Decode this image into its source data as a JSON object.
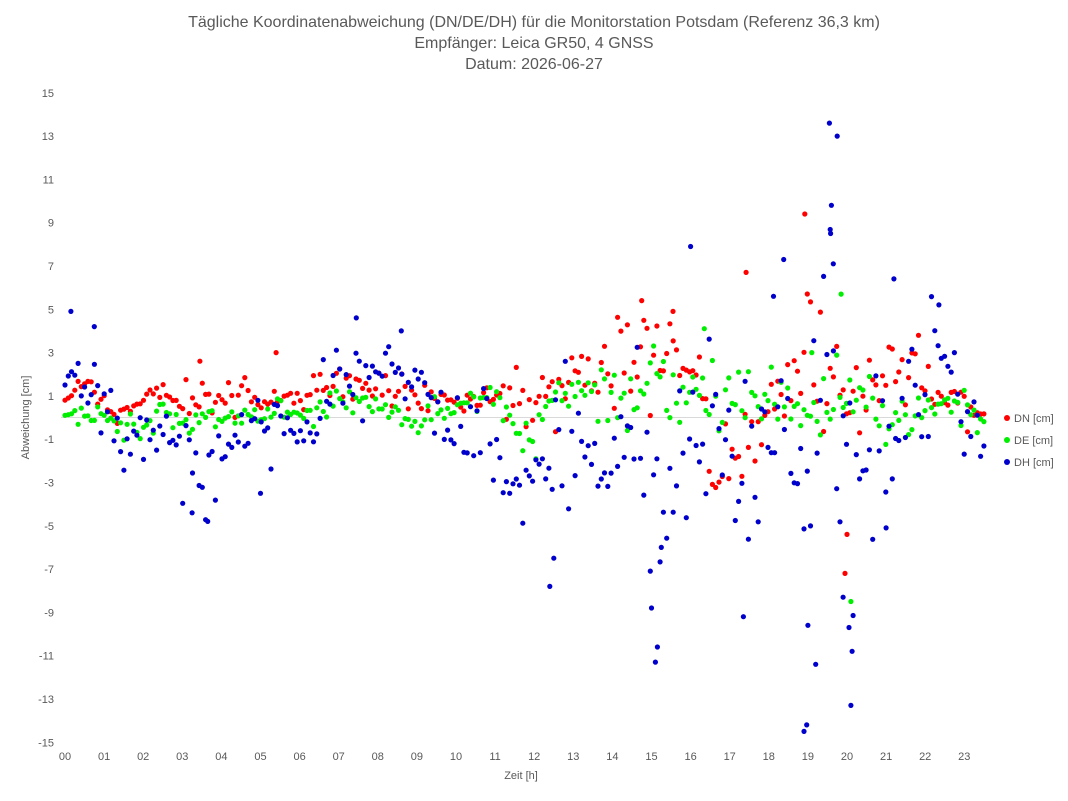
{
  "chart_data": {
    "type": "scatter",
    "title": "Tägliche Koordinatenabweichung (DN/DE/DH) für die Monitorstation Potsdam (Referenz 36,3 km)",
    "subtitle_1": "Empfänger: Leica GR50, 4 GNSS",
    "subtitle_2": "Datum: 2026-06-27",
    "xlabel": "Zeit [h]",
    "ylabel": "Abweichung [cm]",
    "xlim": [
      0,
      23.5
    ],
    "ylim": [
      -15.5,
      15.5
    ],
    "grid": false,
    "zero_line": true,
    "legend_position": "right",
    "x_ticks": [
      "00",
      "01",
      "02",
      "03",
      "04",
      "05",
      "06",
      "07",
      "08",
      "09",
      "10",
      "11",
      "12",
      "13",
      "14",
      "15",
      "16",
      "17",
      "18",
      "19",
      "20",
      "21",
      "22",
      "23"
    ],
    "y_ticks": [
      "15",
      "13",
      "11",
      "9",
      "7",
      "5",
      "3",
      "1",
      "-1",
      "-3",
      "-5",
      "-7",
      "-9",
      "-11",
      "-13",
      "-15"
    ],
    "series": [
      {
        "name": "DN [cm]",
        "color": "#ff0000",
        "anchors": [
          [
            0,
            0.8
          ],
          [
            0.5,
            1.6
          ],
          [
            1,
            0.6
          ],
          [
            1.5,
            0.2
          ],
          [
            2,
            1.0
          ],
          [
            2.5,
            1.2
          ],
          [
            3,
            0.5
          ],
          [
            3.5,
            1.0
          ],
          [
            4,
            0.9
          ],
          [
            4.5,
            1.3
          ],
          [
            5,
            0.7
          ],
          [
            5.5,
            1.1
          ],
          [
            6,
            0.8
          ],
          [
            6.5,
            1.6
          ],
          [
            7,
            1.8
          ],
          [
            7.5,
            1.4
          ],
          [
            8,
            1.3
          ],
          [
            8.5,
            1.3
          ],
          [
            9,
            1.2
          ],
          [
            9.5,
            1.0
          ],
          [
            10,
            0.6
          ],
          [
            10.5,
            0.6
          ],
          [
            11,
            1.1
          ],
          [
            11.5,
            0.9
          ],
          [
            12,
            0.4
          ],
          [
            12.5,
            1.3
          ],
          [
            13,
            1.7
          ],
          [
            13.5,
            1.5
          ],
          [
            14,
            2.0
          ],
          [
            14.5,
            2.8
          ],
          [
            15,
            3.0
          ],
          [
            15.5,
            2.6
          ],
          [
            16,
            1.2
          ],
          [
            16.5,
            -1.2
          ],
          [
            17,
            -2.5
          ],
          [
            17.5,
            -1.0
          ],
          [
            18,
            0.6
          ],
          [
            18.5,
            1.6
          ],
          [
            19,
            2.1
          ],
          [
            19.5,
            1.6
          ],
          [
            20,
            1.4
          ],
          [
            20.5,
            1.3
          ],
          [
            21,
            2.4
          ],
          [
            21.5,
            2.0
          ],
          [
            22,
            2.1
          ],
          [
            22.5,
            1.3
          ],
          [
            23,
            0.6
          ],
          [
            23.4,
            0.5
          ]
        ],
        "spread": [
          0,
          0.25,
          0.4,
          0.4,
          0.35,
          0.45,
          0.4,
          0.45,
          0.4,
          0.4,
          0.4,
          0.45,
          0.4,
          0.5,
          0.5,
          0.5,
          0.5,
          0.5,
          0.5,
          0.45,
          0.4,
          0.4,
          0.45,
          0.6,
          0.7,
          0.7,
          0.8,
          0.9,
          1.0,
          1.2,
          1.3,
          1.3,
          1.4,
          1.3,
          1.3,
          1.4,
          1.2,
          1.2,
          1.5,
          1.6,
          1.5,
          1.2,
          1.0,
          0.9,
          0.9,
          0.7,
          0.6,
          0.5
        ]
      },
      {
        "name": "DE [cm]",
        "color": "#00ee00",
        "anchors": [
          [
            0,
            0.1
          ],
          [
            0.5,
            0.2
          ],
          [
            1,
            0.0
          ],
          [
            1.5,
            -0.4
          ],
          [
            2,
            -0.5
          ],
          [
            2.5,
            0.3
          ],
          [
            3,
            -0.3
          ],
          [
            3.5,
            0.2
          ],
          [
            4,
            0.1
          ],
          [
            4.5,
            -0.1
          ],
          [
            5,
            -0.1
          ],
          [
            5.5,
            0.4
          ],
          [
            6,
            0.0
          ],
          [
            6.5,
            0.3
          ],
          [
            7,
            0.8
          ],
          [
            7.5,
            0.6
          ],
          [
            8,
            0.3
          ],
          [
            8.5,
            0.2
          ],
          [
            9,
            -0.3
          ],
          [
            9.5,
            0.2
          ],
          [
            10,
            0.4
          ],
          [
            10.5,
            0.6
          ],
          [
            11,
            1.0
          ],
          [
            11.5,
            -0.6
          ],
          [
            12,
            -0.8
          ],
          [
            12.5,
            0.9
          ],
          [
            13,
            1.4
          ],
          [
            13.5,
            1.4
          ],
          [
            14,
            0.7
          ],
          [
            14.5,
            1.3
          ],
          [
            15,
            1.7
          ],
          [
            15.5,
            0.9
          ],
          [
            16,
            1.2
          ],
          [
            16.5,
            0.9
          ],
          [
            17,
            0.9
          ],
          [
            17.5,
            0.8
          ],
          [
            18,
            0.8
          ],
          [
            18.5,
            0.2
          ],
          [
            19,
            -0.3
          ],
          [
            19.5,
            0.6
          ],
          [
            20,
            0.3
          ],
          [
            20.5,
            0.2
          ],
          [
            21,
            -0.6
          ],
          [
            21.5,
            -0.4
          ],
          [
            22,
            0.6
          ],
          [
            22.5,
            0.6
          ],
          [
            23,
            0.2
          ],
          [
            23.4,
            -0.3
          ]
        ],
        "spread": [
          0,
          0.3,
          0.3,
          0.35,
          0.35,
          0.35,
          0.3,
          0.35,
          0.3,
          0.3,
          0.3,
          0.3,
          0.3,
          0.35,
          0.4,
          0.4,
          0.4,
          0.4,
          0.4,
          0.35,
          0.3,
          0.3,
          0.4,
          0.5,
          0.6,
          0.6,
          0.6,
          0.6,
          0.6,
          0.7,
          0.8,
          0.8,
          0.8,
          0.7,
          0.7,
          0.7,
          0.7,
          0.8,
          0.9,
          1.0,
          1.0,
          0.9,
          0.7,
          0.7,
          0.7,
          0.6,
          0.5,
          0.4
        ]
      },
      {
        "name": "DH [cm]",
        "color": "#0000cc",
        "anchors": [
          [
            0,
            1.5
          ],
          [
            0.5,
            2.0
          ],
          [
            1,
            -0.3
          ],
          [
            1.5,
            -1.2
          ],
          [
            2,
            -0.4
          ],
          [
            2.5,
            0.2
          ],
          [
            3,
            -1.4
          ],
          [
            3.5,
            -2.2
          ],
          [
            4,
            -1.8
          ],
          [
            4.5,
            -1.0
          ],
          [
            5,
            -0.4
          ],
          [
            5.5,
            -0.1
          ],
          [
            6,
            -1.5
          ],
          [
            6.5,
            0.8
          ],
          [
            7,
            2.5
          ],
          [
            7.5,
            1.8
          ],
          [
            8,
            2.2
          ],
          [
            8.5,
            2.8
          ],
          [
            9,
            1.0
          ],
          [
            9.5,
            0.6
          ],
          [
            10,
            -1.2
          ],
          [
            10.5,
            -0.7
          ],
          [
            11,
            -0.6
          ],
          [
            11.5,
            -3.8
          ],
          [
            12,
            -2.4
          ],
          [
            12.5,
            -1.5
          ],
          [
            13,
            -2.4
          ],
          [
            13.5,
            -1.6
          ],
          [
            14,
            -1.6
          ],
          [
            14.5,
            -0.5
          ],
          [
            15,
            -3.0
          ],
          [
            15.5,
            -3.5
          ],
          [
            16,
            -2.0
          ],
          [
            16.5,
            0.5
          ],
          [
            17,
            -3.5
          ],
          [
            17.5,
            -2.5
          ],
          [
            18,
            -1.5
          ],
          [
            18.5,
            2.5
          ],
          [
            19,
            -2.5
          ],
          [
            19.5,
            3.2
          ],
          [
            20,
            -1.5
          ],
          [
            20.5,
            -2.0
          ],
          [
            21,
            -0.8
          ],
          [
            21.5,
            1.2
          ],
          [
            22,
            2.5
          ],
          [
            22.5,
            3.2
          ],
          [
            23,
            1.0
          ],
          [
            23.4,
            -1.0
          ]
        ],
        "spread": [
          0,
          0.9,
          1.0,
          0.9,
          0.8,
          0.8,
          1.1,
          1.2,
          1.0,
          0.9,
          0.9,
          0.9,
          0.9,
          0.9,
          1.0,
          0.9,
          0.8,
          0.8,
          0.8,
          0.8,
          0.9,
          0.8,
          1.2,
          1.4,
          1.5,
          1.4,
          1.4,
          1.3,
          1.4,
          2.0,
          2.2,
          2.0,
          1.8,
          1.8,
          2.0,
          1.8,
          2.0,
          2.5,
          3.0,
          3.5,
          3.0,
          2.0,
          1.5,
          1.5,
          1.5,
          1.3,
          1.0,
          1.0
        ]
      }
    ],
    "outliers": {
      "DN [cm]": [
        [
          18.92,
          9.4
        ],
        [
          17.42,
          6.7
        ],
        [
          20.0,
          -5.4
        ],
        [
          19.95,
          -7.2
        ],
        [
          3.45,
          2.6
        ],
        [
          5.4,
          3.0
        ],
        [
          14.75,
          5.4
        ],
        [
          15.55,
          4.9
        ]
      ],
      "DE [cm]": [
        [
          20.1,
          -8.5
        ],
        [
          19.85,
          5.7
        ],
        [
          16.35,
          4.1
        ],
        [
          19.1,
          3.0
        ]
      ],
      "DH [cm]": [
        [
          19.55,
          13.6
        ],
        [
          19.75,
          13.0
        ],
        [
          19.6,
          9.8
        ],
        [
          19.58,
          8.5
        ],
        [
          19.65,
          7.1
        ],
        [
          16.0,
          7.9
        ],
        [
          18.38,
          7.3
        ],
        [
          18.12,
          5.6
        ],
        [
          21.2,
          6.4
        ],
        [
          22.35,
          5.2
        ],
        [
          0.15,
          4.9
        ],
        [
          0.75,
          4.2
        ],
        [
          7.45,
          4.6
        ],
        [
          8.6,
          4.0
        ],
        [
          19.0,
          -9.6
        ],
        [
          19.2,
          -11.4
        ],
        [
          18.9,
          -14.5
        ],
        [
          18.97,
          -14.2
        ],
        [
          20.1,
          -13.3
        ],
        [
          20.13,
          -10.8
        ],
        [
          20.05,
          -9.7
        ],
        [
          15.1,
          -11.3
        ],
        [
          15.15,
          -10.6
        ],
        [
          15.0,
          -8.8
        ],
        [
          12.4,
          -7.8
        ],
        [
          17.35,
          -9.2
        ],
        [
          19.9,
          -8.3
        ],
        [
          3.65,
          -4.8
        ],
        [
          3.25,
          -4.4
        ],
        [
          12.5,
          -6.5
        ],
        [
          15.25,
          -6.0
        ],
        [
          5.0,
          -3.5
        ],
        [
          21.0,
          -5.1
        ]
      ]
    }
  }
}
